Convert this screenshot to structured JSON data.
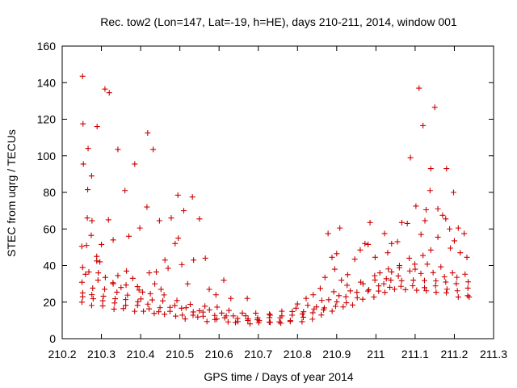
{
  "chart_data": {
    "type": "scatter",
    "title": "Rec. tow2 (Lon=147, Lat=-19, h=HE), days 210-211, 2014, window 001",
    "xlabel": "GPS time / Days of year 2014",
    "ylabel": "STEC from uqrg / TECUs",
    "xlim": [
      210.2,
      211.3
    ],
    "ylim": [
      0,
      160
    ],
    "x_ticks": [
      "210.2",
      "210.3",
      "210.4",
      "210.5",
      "210.6",
      "210.7",
      "210.8",
      "210.9",
      "211",
      "211.1",
      "211.2",
      "211.3"
    ],
    "y_ticks": [
      "0",
      "20",
      "40",
      "60",
      "80",
      "100",
      "120",
      "140",
      "160"
    ],
    "grid": false,
    "marker": "+",
    "color": "#cc0000",
    "series": [
      {
        "points": [
          [
            210.252,
            143.5
          ],
          [
            210.253,
            117.5
          ],
          [
            210.254,
            95.5
          ],
          [
            210.266,
            104.0
          ],
          [
            210.265,
            81.5
          ],
          [
            210.275,
            89.0
          ],
          [
            210.289,
            116.0
          ],
          [
            210.309,
            136.5
          ],
          [
            210.32,
            134.5
          ],
          [
            210.342,
            103.5
          ],
          [
            210.36,
            81.0
          ],
          [
            210.37,
            56.0
          ],
          [
            210.385,
            95.5
          ],
          [
            210.418,
            112.5
          ],
          [
            210.432,
            103.5
          ],
          [
            210.416,
            72.0
          ],
          [
            210.448,
            64.5
          ],
          [
            210.478,
            66.0
          ],
          [
            210.495,
            78.5
          ],
          [
            210.51,
            70.0
          ],
          [
            210.532,
            77.5
          ],
          [
            210.55,
            65.5
          ],
          [
            210.565,
            44.0
          ],
          [
            210.535,
            43.0
          ],
          [
            210.462,
            43.0
          ],
          [
            210.44,
            36.5
          ],
          [
            210.398,
            60.5
          ],
          [
            210.318,
            65.0
          ],
          [
            210.3,
            51.5
          ],
          [
            210.33,
            54.0
          ],
          [
            210.274,
            56.5
          ],
          [
            210.276,
            64.5
          ],
          [
            210.264,
            66.0
          ],
          [
            210.25,
            50.5
          ],
          [
            210.262,
            51.0
          ],
          [
            210.288,
            45.0
          ],
          [
            210.288,
            42.5
          ],
          [
            210.296,
            42.0
          ],
          [
            210.252,
            39.0
          ],
          [
            210.268,
            36.5
          ],
          [
            210.292,
            36.0
          ],
          [
            210.31,
            33.5
          ],
          [
            210.33,
            30.0
          ],
          [
            210.342,
            34.5
          ],
          [
            210.35,
            28.0
          ],
          [
            210.364,
            37.0
          ],
          [
            210.38,
            33.0
          ],
          [
            210.392,
            28.5
          ],
          [
            210.405,
            25.5
          ],
          [
            210.422,
            36.0
          ],
          [
            210.436,
            30.0
          ],
          [
            210.452,
            27.0
          ],
          [
            210.47,
            38.5
          ],
          [
            210.488,
            52.0
          ],
          [
            210.496,
            55.0
          ],
          [
            210.505,
            40.5
          ],
          [
            210.52,
            30.0
          ],
          [
            210.575,
            27.0
          ],
          [
            210.592,
            24.0
          ],
          [
            210.612,
            32.0
          ],
          [
            210.63,
            22.0
          ],
          [
            210.672,
            22.0
          ],
          [
            210.8,
            19.0
          ],
          [
            210.822,
            22.0
          ],
          [
            210.84,
            24.0
          ],
          [
            210.858,
            27.5
          ],
          [
            210.87,
            33.5
          ],
          [
            210.878,
            57.5
          ],
          [
            210.888,
            44.5
          ],
          [
            210.9,
            46.5
          ],
          [
            210.908,
            60.5
          ],
          [
            210.895,
            38.0
          ],
          [
            210.912,
            32.0
          ],
          [
            210.928,
            35.0
          ],
          [
            210.946,
            43.5
          ],
          [
            210.96,
            48.5
          ],
          [
            210.972,
            52.0
          ],
          [
            210.985,
            63.5
          ],
          [
            210.98,
            51.5
          ],
          [
            210.998,
            44.5
          ],
          [
            211.022,
            57.5
          ],
          [
            211.03,
            47.0
          ],
          [
            211.04,
            52.0
          ],
          [
            211.055,
            53.0
          ],
          [
            211.066,
            63.5
          ],
          [
            211.08,
            63.0
          ],
          [
            211.088,
            99.0
          ],
          [
            211.102,
            72.5
          ],
          [
            211.11,
            137.0
          ],
          [
            211.115,
            57.0
          ],
          [
            211.12,
            116.5
          ],
          [
            211.125,
            64.5
          ],
          [
            211.128,
            70.5
          ],
          [
            211.14,
            93.0
          ],
          [
            211.138,
            81.0
          ],
          [
            211.15,
            126.5
          ],
          [
            211.158,
            71.0
          ],
          [
            211.17,
            67.5
          ],
          [
            211.18,
            93.0
          ],
          [
            211.178,
            65.5
          ],
          [
            211.188,
            60.0
          ],
          [
            211.198,
            80.0
          ],
          [
            211.21,
            60.5
          ],
          [
            211.225,
            57.5
          ],
          [
            211.2,
            53.5
          ],
          [
            211.215,
            47.0
          ],
          [
            211.232,
            44.5
          ],
          [
            211.19,
            49.5
          ],
          [
            211.158,
            55.5
          ],
          [
            211.14,
            48.5
          ],
          [
            211.12,
            45.5
          ],
          [
            211.1,
            38.0
          ],
          [
            211.085,
            44.0
          ],
          [
            211.06,
            40.0
          ],
          [
            211.04,
            36.5
          ],
          [
            211.02,
            30.0
          ],
          [
            211.01,
            36.0
          ]
        ]
      }
    ],
    "bands": [
      {
        "x0": 210.25,
        "x1": 211.235,
        "yc": [
          20,
          17,
          14.5,
          12,
          10,
          8.8,
          9,
          10.5,
          16,
          23.5,
          27,
          26,
          22
        ],
        "n": 38
      },
      {
        "x0": 210.25,
        "x1": 211.235,
        "yc": [
          22,
          20,
          17,
          14,
          11.5,
          9.5,
          9.5,
          12,
          19,
          26,
          29,
          29,
          24
        ],
        "n": 36
      },
      {
        "x0": 210.25,
        "x1": 211.235,
        "yc": [
          26,
          23,
          19,
          16,
          13,
          10.5,
          10.5,
          14,
          21,
          28,
          33,
          32,
          28
        ],
        "n": 36
      },
      {
        "x0": 210.25,
        "x1": 211.235,
        "yc": [
          30,
          26,
          22,
          18,
          15,
          12,
          12,
          16,
          24,
          31,
          36,
          36,
          31
        ],
        "n": 34
      },
      {
        "x0": 210.26,
        "x1": 211.23,
        "yc": [
          35,
          30,
          25,
          21,
          17,
          14,
          14,
          18,
          27,
          34,
          40,
          40,
          35
        ],
        "n": 30
      }
    ]
  }
}
